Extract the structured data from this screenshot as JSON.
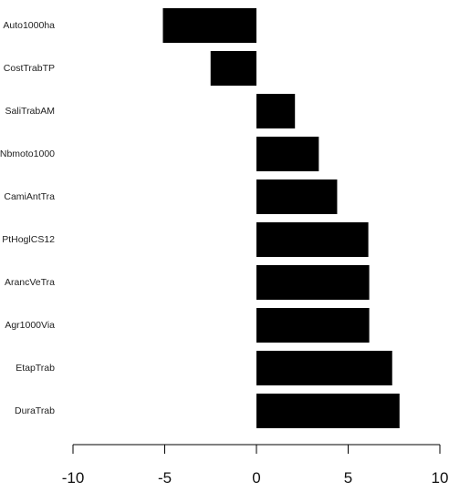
{
  "chart_data": {
    "type": "bar",
    "orientation": "horizontal",
    "categories": [
      "Auto1000ha",
      "CostTrabTP",
      "SaliTrabAM",
      "Nbmoto1000",
      "CamiAntTra",
      "PtHoglCS12",
      "ArancVeTra",
      "Agr1000Via",
      "EtapTrab",
      "DuraTrab"
    ],
    "values": [
      -5.1,
      -2.5,
      2.1,
      3.4,
      4.4,
      6.1,
      6.15,
      6.15,
      7.4,
      7.8
    ],
    "title": "",
    "xlabel": "",
    "ylabel": "",
    "xlim": [
      -10,
      10
    ],
    "xticks": [
      -10,
      -5,
      0,
      5,
      10
    ],
    "xtick_labels": [
      "-10",
      "-5",
      "0",
      "5",
      "10"
    ],
    "grid": false,
    "legend": "none",
    "bar_color": "#000000",
    "axis_color": "#000000"
  }
}
